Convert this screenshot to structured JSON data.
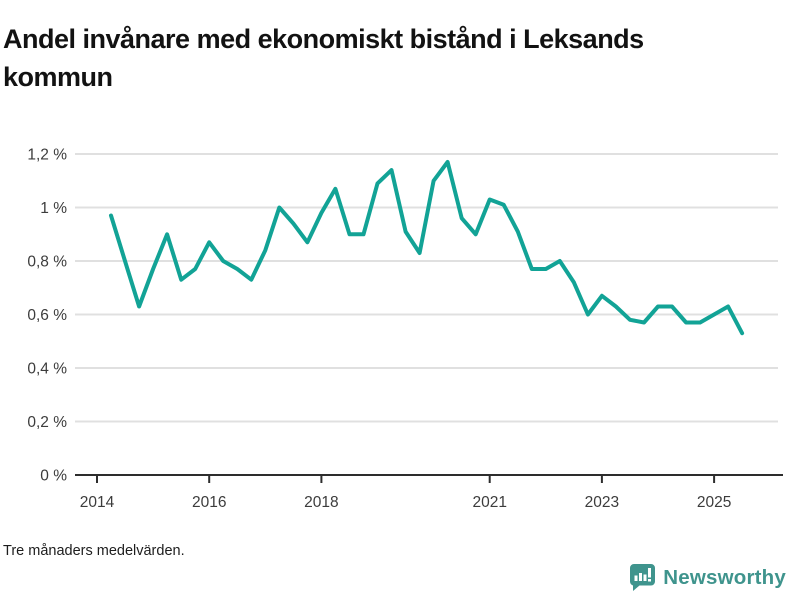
{
  "title": "Andel invånare med ekonomiskt bistånd i Leksands kommun",
  "footnote": "Tre månaders medelvärden.",
  "logo": {
    "text": "Newsworthy",
    "icon": "newsworthy-bars-speech-bubble-icon",
    "color": "#3f948d"
  },
  "chart_data": {
    "type": "line",
    "title": "Andel invånare med ekonomiskt bistånd i Leksands kommun",
    "xlabel": "",
    "ylabel": "",
    "grid": true,
    "legend": "none",
    "xlim": [
      2013.6,
      2026.1
    ],
    "ylim": [
      0,
      1.2
    ],
    "x_tick_years": [
      2014,
      2016,
      2018,
      2021,
      2023,
      2025
    ],
    "y_ticks": [
      {
        "value": 0,
        "label": "0 %"
      },
      {
        "value": 0.2,
        "label": "0,2 %"
      },
      {
        "value": 0.4,
        "label": "0,4 %"
      },
      {
        "value": 0.6,
        "label": "0,6 %"
      },
      {
        "value": 0.8,
        "label": "0,8 %"
      },
      {
        "value": 1.0,
        "label": "1 %"
      },
      {
        "value": 1.2,
        "label": "1,2 %"
      }
    ],
    "unit": "%",
    "series": [
      {
        "name": "Andel invånare med ekonomiskt bistånd",
        "color": "#12a396",
        "x": [
          2014.25,
          2014.5,
          2014.75,
          2015.0,
          2015.25,
          2015.5,
          2015.75,
          2016.0,
          2016.25,
          2016.5,
          2016.75,
          2017.0,
          2017.25,
          2017.5,
          2017.75,
          2018.0,
          2018.25,
          2018.5,
          2018.75,
          2019.0,
          2019.25,
          2019.5,
          2019.75,
          2020.0,
          2020.25,
          2020.5,
          2020.75,
          2021.0,
          2021.25,
          2021.5,
          2021.75,
          2022.0,
          2022.25,
          2022.5,
          2022.75,
          2023.0,
          2023.25,
          2023.5,
          2023.75,
          2024.0,
          2024.25,
          2024.5,
          2024.75,
          2025.0,
          2025.25,
          2025.5
        ],
        "values": [
          0.97,
          0.8,
          0.63,
          0.77,
          0.9,
          0.73,
          0.77,
          0.87,
          0.8,
          0.77,
          0.73,
          0.84,
          1.0,
          0.94,
          0.87,
          0.98,
          1.07,
          0.9,
          0.9,
          1.09,
          1.14,
          0.91,
          0.83,
          1.1,
          1.17,
          0.96,
          0.9,
          1.03,
          1.01,
          0.91,
          0.77,
          0.77,
          0.8,
          0.72,
          0.6,
          0.67,
          0.63,
          0.58,
          0.57,
          0.63,
          0.63,
          0.57,
          0.57,
          0.6,
          0.63,
          0.53
        ]
      }
    ],
    "colors": {
      "line": "#12a396",
      "gridline": "#e0e0e0",
      "axis": "#2d2d2d",
      "tick_label": "#3c3c3c"
    }
  }
}
